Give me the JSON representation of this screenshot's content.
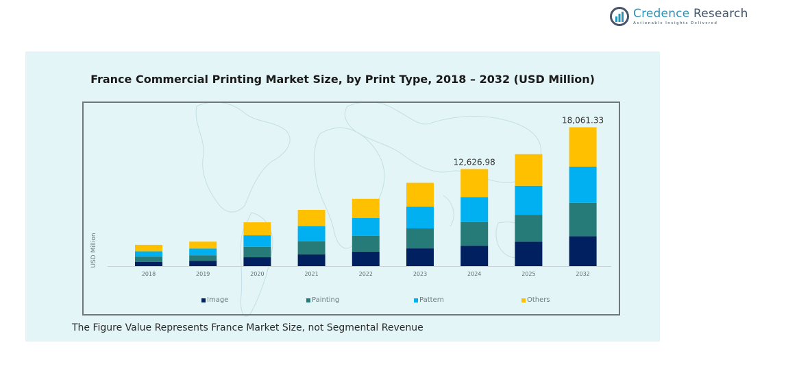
{
  "branding": {
    "name_part1": "Credence",
    "name_part2": "Research",
    "tagline": "Actionable Insights Delivered"
  },
  "footnote": "The Figure Value Represents France Market Size, not Segmental Revenue",
  "chart_data": {
    "type": "bar",
    "stacked": true,
    "title": "France Commercial Printing Market Size, by Print Type, 2018 – 2032 (USD Million)",
    "xlabel": "",
    "ylabel": "USD Million",
    "categories": [
      "2018",
      "2019",
      "2020",
      "2021",
      "2022",
      "2023",
      "2024",
      "2025",
      "2032"
    ],
    "series": [
      {
        "name": "Image",
        "color": "#002060",
        "values": [
          540,
          670,
          1155,
          1540,
          1880,
          2310,
          2650,
          3180,
          3892
        ]
      },
      {
        "name": "Painting",
        "color": "#267a78",
        "values": [
          690,
          740,
          1355,
          1695,
          2050,
          2595,
          3080,
          3500,
          4327
        ]
      },
      {
        "name": "Pattern",
        "color": "#00b0f0",
        "values": [
          690,
          880,
          1495,
          1970,
          2340,
          2820,
          3255,
          3775,
          4720
        ]
      },
      {
        "name": "Others",
        "color": "#ffc000",
        "values": [
          850,
          895,
          1695,
          2110,
          2485,
          3110,
          3641.98,
          4105,
          5122.33
        ]
      }
    ],
    "totals_labeled": {
      "2024": "12,626.98",
      "2032": "18,061.33"
    },
    "ylim": [
      0,
      19000
    ],
    "y_axis_visible": false,
    "grid": false,
    "legend": {
      "position": "bottom",
      "entries": [
        "Image",
        "Painting",
        "Pattern",
        "Others"
      ]
    }
  }
}
